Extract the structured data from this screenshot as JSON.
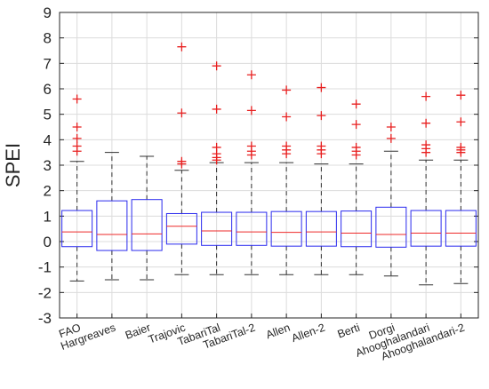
{
  "chart_data": {
    "type": "box",
    "ylabel": "SPEI",
    "ylim": [
      -3,
      9
    ],
    "yticks": [
      "-3",
      "-2",
      "-1",
      "0",
      "1",
      "2",
      "3",
      "4",
      "5",
      "6",
      "7",
      "8",
      "9"
    ],
    "grid": true,
    "colors": {
      "box": "#2a2aee",
      "median": "#ee2a2a",
      "outlier": "#e82020",
      "whisker": "#303030",
      "grid": "#dcdcdc",
      "axis": "#262626"
    },
    "categories": [
      "FAO",
      "Hargreaves",
      "Baier",
      "Trajovic",
      "TabariTal",
      "TabariTal-2",
      "Allen",
      "Allen-2",
      "Berti",
      "Dorgi",
      "Ahooghalandari",
      "Ahooghalandari-2"
    ],
    "boxes": [
      {
        "q1": -0.2,
        "median": 0.38,
        "q3": 1.22,
        "whisker_low": -1.55,
        "whisker_high": 3.15,
        "outliers": [
          3.55,
          3.75,
          4.05,
          4.5,
          5.6
        ]
      },
      {
        "q1": -0.35,
        "median": 0.28,
        "q3": 1.6,
        "whisker_low": -1.5,
        "whisker_high": 3.5,
        "outliers": []
      },
      {
        "q1": -0.35,
        "median": 0.3,
        "q3": 1.65,
        "whisker_low": -1.5,
        "whisker_high": 3.35,
        "outliers": []
      },
      {
        "q1": -0.1,
        "median": 0.6,
        "q3": 1.1,
        "whisker_low": -1.3,
        "whisker_high": 2.8,
        "outliers": [
          3.05,
          3.15,
          5.05,
          7.65
        ]
      },
      {
        "q1": -0.15,
        "median": 0.42,
        "q3": 1.15,
        "whisker_low": -1.3,
        "whisker_high": 3.1,
        "outliers": [
          3.2,
          3.3,
          3.45,
          3.7,
          5.2,
          6.9
        ]
      },
      {
        "q1": -0.15,
        "median": 0.38,
        "q3": 1.15,
        "whisker_low": -1.3,
        "whisker_high": 3.1,
        "outliers": [
          3.4,
          3.55,
          3.75,
          5.15,
          6.55
        ]
      },
      {
        "q1": -0.18,
        "median": 0.36,
        "q3": 1.18,
        "whisker_low": -1.3,
        "whisker_high": 3.1,
        "outliers": [
          3.45,
          3.6,
          3.75,
          4.9,
          5.95
        ]
      },
      {
        "q1": -0.18,
        "median": 0.38,
        "q3": 1.18,
        "whisker_low": -1.3,
        "whisker_high": 3.05,
        "outliers": [
          3.45,
          3.6,
          3.75,
          4.95,
          6.05
        ]
      },
      {
        "q1": -0.2,
        "median": 0.33,
        "q3": 1.2,
        "whisker_low": -1.3,
        "whisker_high": 3.05,
        "outliers": [
          3.4,
          3.55,
          3.7,
          4.6,
          5.4
        ]
      },
      {
        "q1": -0.22,
        "median": 0.28,
        "q3": 1.35,
        "whisker_low": -1.35,
        "whisker_high": 3.55,
        "outliers": [
          4.05,
          4.5
        ]
      },
      {
        "q1": -0.18,
        "median": 0.33,
        "q3": 1.22,
        "whisker_low": -1.7,
        "whisker_high": 3.2,
        "outliers": [
          3.5,
          3.65,
          3.8,
          4.65,
          5.7
        ]
      },
      {
        "q1": -0.18,
        "median": 0.33,
        "q3": 1.22,
        "whisker_low": -1.65,
        "whisker_high": 3.2,
        "outliers": [
          3.5,
          3.6,
          3.7,
          4.7,
          5.75
        ]
      }
    ]
  }
}
